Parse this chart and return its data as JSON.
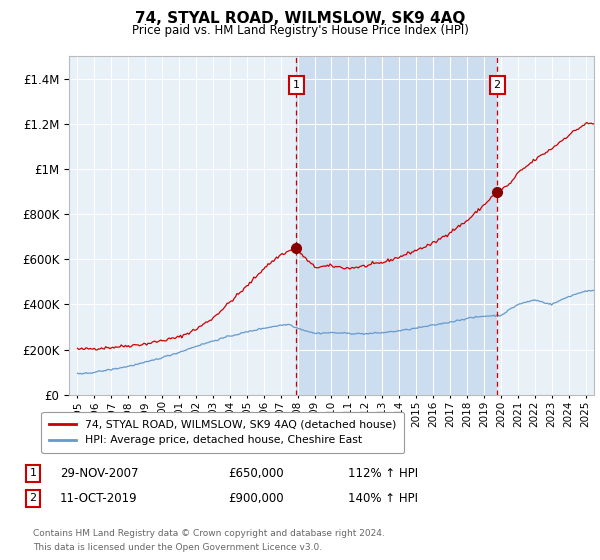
{
  "title": "74, STYAL ROAD, WILMSLOW, SK9 4AQ",
  "subtitle": "Price paid vs. HM Land Registry's House Price Index (HPI)",
  "legend_line1": "74, STYAL ROAD, WILMSLOW, SK9 4AQ (detached house)",
  "legend_line2": "HPI: Average price, detached house, Cheshire East",
  "annotation1_label": "1",
  "annotation1_date": "29-NOV-2007",
  "annotation1_price": "£650,000",
  "annotation1_hpi": "112% ↑ HPI",
  "annotation1_year": 2007.92,
  "annotation1_value": 650000,
  "annotation2_label": "2",
  "annotation2_date": "11-OCT-2019",
  "annotation2_price": "£900,000",
  "annotation2_hpi": "140% ↑ HPI",
  "annotation2_year": 2019.78,
  "annotation2_value": 900000,
  "footer_line1": "Contains HM Land Registry data © Crown copyright and database right 2024.",
  "footer_line2": "This data is licensed under the Open Government Licence v3.0.",
  "red_color": "#cc0000",
  "blue_color": "#6699cc",
  "plot_bg_color": "#e8f0f8",
  "shade_color": "#ccddf0",
  "ylim_max": 1500000,
  "xlim_start": 1994.5,
  "xlim_end": 2025.5
}
